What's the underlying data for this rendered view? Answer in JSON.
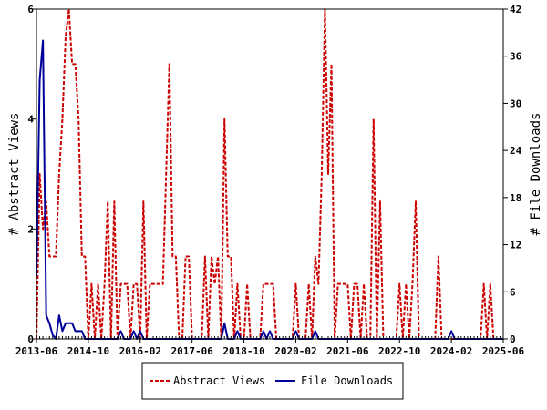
{
  "chart_data": {
    "type": "line",
    "title": "",
    "xlabel": "",
    "x_tick_labels": [
      "2013-06",
      "2014-10",
      "2016-02",
      "2017-06",
      "2018-10",
      "2020-02",
      "2021-06",
      "2022-10",
      "2024-02",
      "2025-06"
    ],
    "x_range": [
      "2013-06",
      "2025-06"
    ],
    "left_axis": {
      "label": "# Abstract Views",
      "ylim": [
        0,
        6
      ],
      "ticks": [
        0,
        2,
        4,
        6
      ]
    },
    "right_axis": {
      "label": "# File Downloads",
      "ylim": [
        0,
        42
      ],
      "ticks": [
        0,
        6,
        12,
        18,
        24,
        30,
        36,
        42
      ]
    },
    "legend_position": "bottom",
    "grid": false,
    "series": [
      {
        "name": "Abstract Views",
        "axis": "left",
        "color": "#cc0000",
        "style": "dashed",
        "points": [
          [
            "2013-06",
            0
          ],
          [
            "2013-07",
            3
          ],
          [
            "2013-08",
            2
          ],
          [
            "2013-09",
            2.5
          ],
          [
            "2013-10",
            1.5
          ],
          [
            "2013-11",
            1.5
          ],
          [
            "2013-12",
            1.5
          ],
          [
            "2014-01",
            3
          ],
          [
            "2014-02",
            4
          ],
          [
            "2014-03",
            5.5
          ],
          [
            "2014-04",
            6
          ],
          [
            "2014-05",
            5
          ],
          [
            "2014-06",
            5
          ],
          [
            "2014-07",
            4
          ],
          [
            "2014-08",
            1.5
          ],
          [
            "2014-09",
            1.5
          ],
          [
            "2014-10",
            0
          ],
          [
            "2014-11",
            1
          ],
          [
            "2014-12",
            0
          ],
          [
            "2015-01",
            1
          ],
          [
            "2015-02",
            0
          ],
          [
            "2015-03",
            1
          ],
          [
            "2015-04",
            2.5
          ],
          [
            "2015-05",
            0
          ],
          [
            "2015-06",
            2.5
          ],
          [
            "2015-07",
            0
          ],
          [
            "2015-08",
            1
          ],
          [
            "2015-09",
            1
          ],
          [
            "2015-10",
            1
          ],
          [
            "2015-11",
            0
          ],
          [
            "2015-12",
            1
          ],
          [
            "2016-01",
            1
          ],
          [
            "2016-02",
            0
          ],
          [
            "2016-03",
            2.5
          ],
          [
            "2016-04",
            0
          ],
          [
            "2016-05",
            1
          ],
          [
            "2016-06",
            1
          ],
          [
            "2016-07",
            1
          ],
          [
            "2016-08",
            1
          ],
          [
            "2016-09",
            1
          ],
          [
            "2016-10",
            3
          ],
          [
            "2016-11",
            5
          ],
          [
            "2016-12",
            1.5
          ],
          [
            "2017-01",
            1.5
          ],
          [
            "2017-02",
            0
          ],
          [
            "2017-03",
            0
          ],
          [
            "2017-04",
            1.5
          ],
          [
            "2017-05",
            1.5
          ],
          [
            "2017-06",
            0
          ],
          [
            "2017-07",
            0
          ],
          [
            "2017-08",
            0
          ],
          [
            "2017-09",
            0
          ],
          [
            "2017-10",
            1.5
          ],
          [
            "2017-11",
            0
          ],
          [
            "2017-12",
            1.5
          ],
          [
            "2018-01",
            1
          ],
          [
            "2018-02",
            1.5
          ],
          [
            "2018-03",
            0
          ],
          [
            "2018-04",
            4
          ],
          [
            "2018-05",
            1.5
          ],
          [
            "2018-06",
            1.5
          ],
          [
            "2018-07",
            0
          ],
          [
            "2018-08",
            1
          ],
          [
            "2018-09",
            0
          ],
          [
            "2018-10",
            0
          ],
          [
            "2018-11",
            1
          ],
          [
            "2018-12",
            0
          ],
          [
            "2019-01",
            0
          ],
          [
            "2019-02",
            0
          ],
          [
            "2019-03",
            0
          ],
          [
            "2019-04",
            1
          ],
          [
            "2019-05",
            1
          ],
          [
            "2019-06",
            1
          ],
          [
            "2019-07",
            1
          ],
          [
            "2019-08",
            0
          ],
          [
            "2019-09",
            0
          ],
          [
            "2019-10",
            0
          ],
          [
            "2019-11",
            0
          ],
          [
            "2019-12",
            0
          ],
          [
            "2020-01",
            0
          ],
          [
            "2020-02",
            1
          ],
          [
            "2020-03",
            0
          ],
          [
            "2020-04",
            0
          ],
          [
            "2020-05",
            0
          ],
          [
            "2020-06",
            1
          ],
          [
            "2020-07",
            0
          ],
          [
            "2020-08",
            1.5
          ],
          [
            "2020-09",
            1
          ],
          [
            "2020-10",
            3
          ],
          [
            "2020-11",
            6
          ],
          [
            "2020-12",
            3
          ],
          [
            "2021-01",
            5
          ],
          [
            "2021-02",
            0
          ],
          [
            "2021-03",
            1
          ],
          [
            "2021-04",
            1
          ],
          [
            "2021-05",
            1
          ],
          [
            "2021-06",
            1
          ],
          [
            "2021-07",
            0
          ],
          [
            "2021-08",
            1
          ],
          [
            "2021-09",
            1
          ],
          [
            "2021-10",
            0
          ],
          [
            "2021-11",
            1
          ],
          [
            "2021-12",
            0
          ],
          [
            "2022-01",
            0
          ],
          [
            "2022-02",
            4
          ],
          [
            "2022-03",
            0
          ],
          [
            "2022-04",
            2.5
          ],
          [
            "2022-05",
            0
          ],
          [
            "2022-06",
            0
          ],
          [
            "2022-07",
            0
          ],
          [
            "2022-08",
            0
          ],
          [
            "2022-09",
            0
          ],
          [
            "2022-10",
            1
          ],
          [
            "2022-11",
            0
          ],
          [
            "2022-12",
            1
          ],
          [
            "2023-01",
            0
          ],
          [
            "2023-02",
            1
          ],
          [
            "2023-03",
            2.5
          ],
          [
            "2023-04",
            0
          ],
          [
            "2023-05",
            0
          ],
          [
            "2023-06",
            0
          ],
          [
            "2023-07",
            0
          ],
          [
            "2023-08",
            0
          ],
          [
            "2023-09",
            0
          ],
          [
            "2023-10",
            1.5
          ],
          [
            "2023-11",
            0
          ],
          [
            "2023-12",
            0
          ],
          [
            "2024-01",
            0
          ],
          [
            "2024-02",
            0
          ],
          [
            "2024-03",
            0
          ],
          [
            "2024-04",
            0
          ],
          [
            "2024-05",
            0
          ],
          [
            "2024-06",
            0
          ],
          [
            "2024-07",
            0
          ],
          [
            "2024-08",
            0
          ],
          [
            "2024-09",
            0
          ],
          [
            "2024-10",
            0
          ],
          [
            "2024-11",
            0
          ],
          [
            "2024-12",
            1
          ],
          [
            "2025-01",
            0
          ],
          [
            "2025-02",
            1
          ],
          [
            "2025-03",
            0
          ],
          [
            "2025-04",
            0
          ],
          [
            "2025-05",
            0
          ],
          [
            "2025-06",
            0
          ]
        ]
      },
      {
        "name": "File Downloads",
        "axis": "right",
        "color": "#000099",
        "style": "solid",
        "points": [
          [
            "2013-06",
            8
          ],
          [
            "2013-07",
            33
          ],
          [
            "2013-08",
            38
          ],
          [
            "2013-09",
            3
          ],
          [
            "2013-10",
            2
          ],
          [
            "2013-11",
            0.5
          ],
          [
            "2013-12",
            0
          ],
          [
            "2014-01",
            3
          ],
          [
            "2014-02",
            1
          ],
          [
            "2014-03",
            2
          ],
          [
            "2014-04",
            2
          ],
          [
            "2014-05",
            2
          ],
          [
            "2014-06",
            1
          ],
          [
            "2014-07",
            1
          ],
          [
            "2014-08",
            1
          ],
          [
            "2014-09",
            0
          ],
          [
            "2014-10",
            0
          ],
          [
            "2014-11",
            0
          ],
          [
            "2014-12",
            0
          ],
          [
            "2015-01",
            0
          ],
          [
            "2015-02",
            0
          ],
          [
            "2015-03",
            0
          ],
          [
            "2015-04",
            0
          ],
          [
            "2015-05",
            0
          ],
          [
            "2015-06",
            0
          ],
          [
            "2015-07",
            0
          ],
          [
            "2015-08",
            1
          ],
          [
            "2015-09",
            0
          ],
          [
            "2015-10",
            0
          ],
          [
            "2015-11",
            0
          ],
          [
            "2015-12",
            1
          ],
          [
            "2016-01",
            0
          ],
          [
            "2016-02",
            1
          ],
          [
            "2016-03",
            0
          ],
          [
            "2016-04",
            0
          ],
          [
            "2016-05",
            0
          ],
          [
            "2016-06",
            0
          ],
          [
            "2016-07",
            0
          ],
          [
            "2016-08",
            0
          ],
          [
            "2016-09",
            0
          ],
          [
            "2016-10",
            0
          ],
          [
            "2016-11",
            0
          ],
          [
            "2016-12",
            0
          ],
          [
            "2017-01",
            0
          ],
          [
            "2017-02",
            0
          ],
          [
            "2017-03",
            0
          ],
          [
            "2017-04",
            0
          ],
          [
            "2017-05",
            0
          ],
          [
            "2017-06",
            0
          ],
          [
            "2017-07",
            0
          ],
          [
            "2017-08",
            0
          ],
          [
            "2017-09",
            0
          ],
          [
            "2017-10",
            0
          ],
          [
            "2017-11",
            0
          ],
          [
            "2017-12",
            0
          ],
          [
            "2018-01",
            0
          ],
          [
            "2018-02",
            0
          ],
          [
            "2018-03",
            0
          ],
          [
            "2018-04",
            2
          ],
          [
            "2018-05",
            0
          ],
          [
            "2018-06",
            0
          ],
          [
            "2018-07",
            0
          ],
          [
            "2018-08",
            1
          ],
          [
            "2018-09",
            0
          ],
          [
            "2018-10",
            0
          ],
          [
            "2018-11",
            0
          ],
          [
            "2018-12",
            0
          ],
          [
            "2019-01",
            0
          ],
          [
            "2019-02",
            0
          ],
          [
            "2019-03",
            0
          ],
          [
            "2019-04",
            1
          ],
          [
            "2019-05",
            0
          ],
          [
            "2019-06",
            1
          ],
          [
            "2019-07",
            0
          ],
          [
            "2019-08",
            0
          ],
          [
            "2019-09",
            0
          ],
          [
            "2019-10",
            0
          ],
          [
            "2019-11",
            0
          ],
          [
            "2019-12",
            0
          ],
          [
            "2020-01",
            0
          ],
          [
            "2020-02",
            1
          ],
          [
            "2020-03",
            0
          ],
          [
            "2020-04",
            0
          ],
          [
            "2020-05",
            0
          ],
          [
            "2020-06",
            0
          ],
          [
            "2020-07",
            0
          ],
          [
            "2020-08",
            1
          ],
          [
            "2020-09",
            0
          ],
          [
            "2020-10",
            0
          ],
          [
            "2020-11",
            0
          ],
          [
            "2020-12",
            0
          ],
          [
            "2021-01",
            0
          ],
          [
            "2021-02",
            0
          ],
          [
            "2021-03",
            0
          ],
          [
            "2021-04",
            0
          ],
          [
            "2021-05",
            0
          ],
          [
            "2021-06",
            0
          ],
          [
            "2021-07",
            0
          ],
          [
            "2021-08",
            0
          ],
          [
            "2021-09",
            0
          ],
          [
            "2021-10",
            0
          ],
          [
            "2021-11",
            0
          ],
          [
            "2021-12",
            0
          ],
          [
            "2022-01",
            0
          ],
          [
            "2022-02",
            0
          ],
          [
            "2022-03",
            0
          ],
          [
            "2022-04",
            0
          ],
          [
            "2022-05",
            0
          ],
          [
            "2022-06",
            0
          ],
          [
            "2022-07",
            0
          ],
          [
            "2022-08",
            0
          ],
          [
            "2022-09",
            0
          ],
          [
            "2022-10",
            0
          ],
          [
            "2022-11",
            0
          ],
          [
            "2022-12",
            0
          ],
          [
            "2023-01",
            0
          ],
          [
            "2023-02",
            0
          ],
          [
            "2023-03",
            0
          ],
          [
            "2023-04",
            0
          ],
          [
            "2023-05",
            0
          ],
          [
            "2023-06",
            0
          ],
          [
            "2023-07",
            0
          ],
          [
            "2023-08",
            0
          ],
          [
            "2023-09",
            0
          ],
          [
            "2023-10",
            0
          ],
          [
            "2023-11",
            0
          ],
          [
            "2023-12",
            0
          ],
          [
            "2024-01",
            0
          ],
          [
            "2024-02",
            1
          ],
          [
            "2024-03",
            0
          ],
          [
            "2024-04",
            0
          ],
          [
            "2024-05",
            0
          ],
          [
            "2024-06",
            0
          ],
          [
            "2024-07",
            0
          ],
          [
            "2024-08",
            0
          ],
          [
            "2024-09",
            0
          ],
          [
            "2024-10",
            0
          ],
          [
            "2024-11",
            0
          ],
          [
            "2024-12",
            0
          ],
          [
            "2025-01",
            0
          ],
          [
            "2025-02",
            0
          ],
          [
            "2025-03",
            0
          ],
          [
            "2025-04",
            0
          ],
          [
            "2025-05",
            0
          ],
          [
            "2025-06",
            0
          ]
        ]
      }
    ]
  }
}
